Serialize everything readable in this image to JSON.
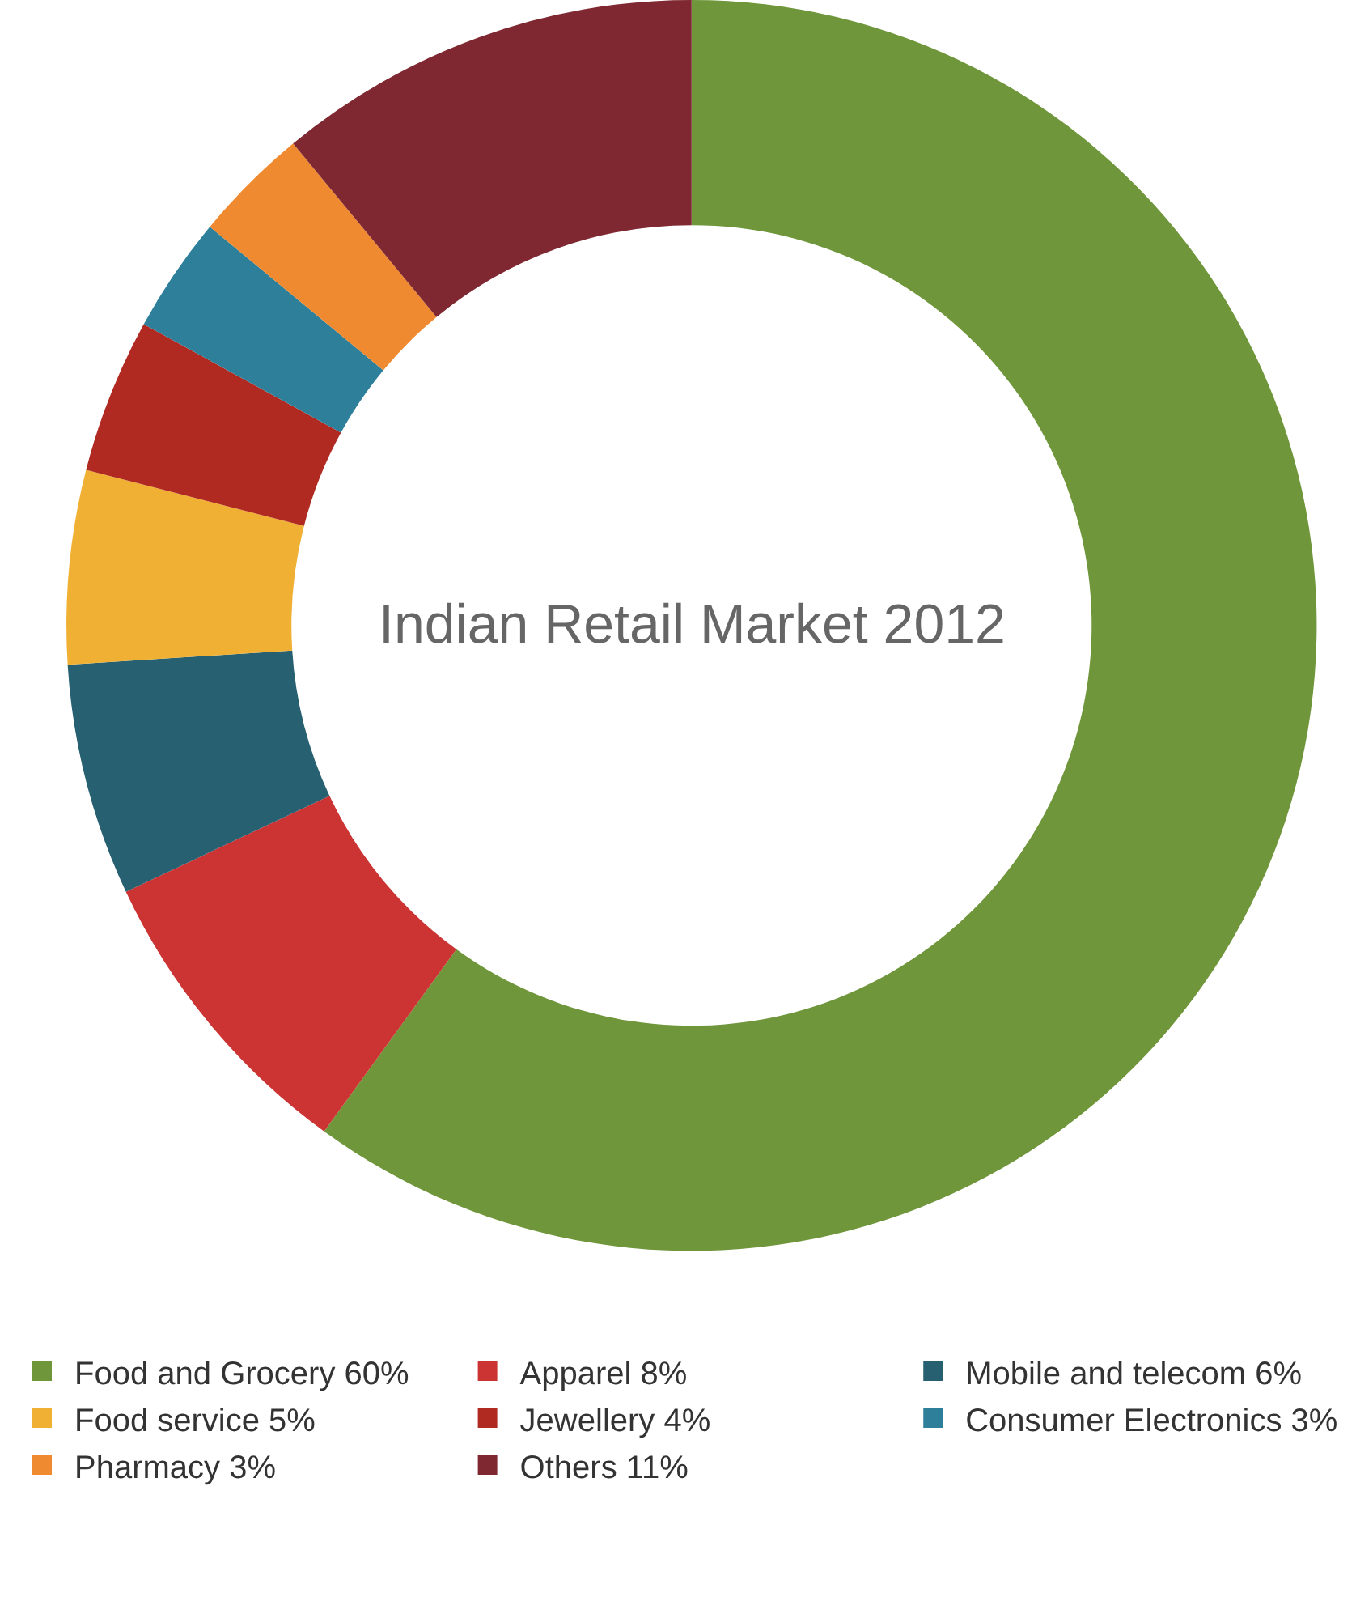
{
  "chart_data": {
    "type": "donut",
    "title": "Indian Retail Market 2012",
    "categories": [
      "Food and Grocery",
      "Apparel",
      "Mobile and telecom",
      "Food service",
      "Jewellery",
      "Consumer Electronics",
      "Pharmacy",
      "Others"
    ],
    "values": [
      60,
      8,
      6,
      5,
      4,
      3,
      3,
      11
    ],
    "value_labels": [
      "60%",
      "8%",
      "6%",
      "5%",
      "4%",
      "3%",
      "3%",
      "11%"
    ],
    "colors": [
      "#6f963a",
      "#cc3333",
      "#276070",
      "#f0b034",
      "#b02a22",
      "#2e7f9a",
      "#f08a30",
      "#7f2832"
    ],
    "legend": "bottom"
  }
}
